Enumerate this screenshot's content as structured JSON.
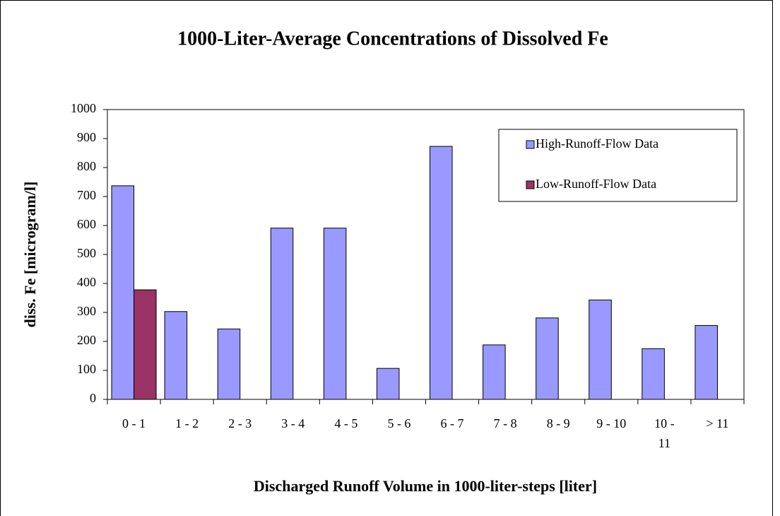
{
  "chart_data": {
    "type": "bar",
    "title": "1000-Liter-Average Concentrations of Dissolved Fe",
    "x_label": "Discharged Runoff Volume in 1000-liter-steps [liter]",
    "y_label": "diss. Fe [microgram/l]",
    "categories": [
      "0 - 1",
      "1 - 2",
      "2 - 3",
      "3 - 4",
      "4 - 5",
      "5 - 6",
      "6 - 7",
      "7 - 8",
      "8 - 9",
      "9 - 10",
      "10 - 11",
      "> 11"
    ],
    "series": [
      {
        "name": "High-Runoff-Flow Data",
        "color": "#9999ff",
        "values": [
          737,
          303,
          243,
          591,
          591,
          107,
          873,
          188,
          281,
          343,
          175,
          255
        ]
      },
      {
        "name": "Low-Runoff-Flow Data",
        "color": "#993366",
        "values": [
          378,
          null,
          null,
          null,
          null,
          null,
          null,
          null,
          null,
          null,
          null,
          null
        ]
      }
    ],
    "ylim": [
      0,
      1000
    ],
    "yticks": [
      0,
      100,
      200,
      300,
      400,
      500,
      600,
      700,
      800,
      900,
      1000
    ],
    "grid": false,
    "legend": "upper right"
  }
}
